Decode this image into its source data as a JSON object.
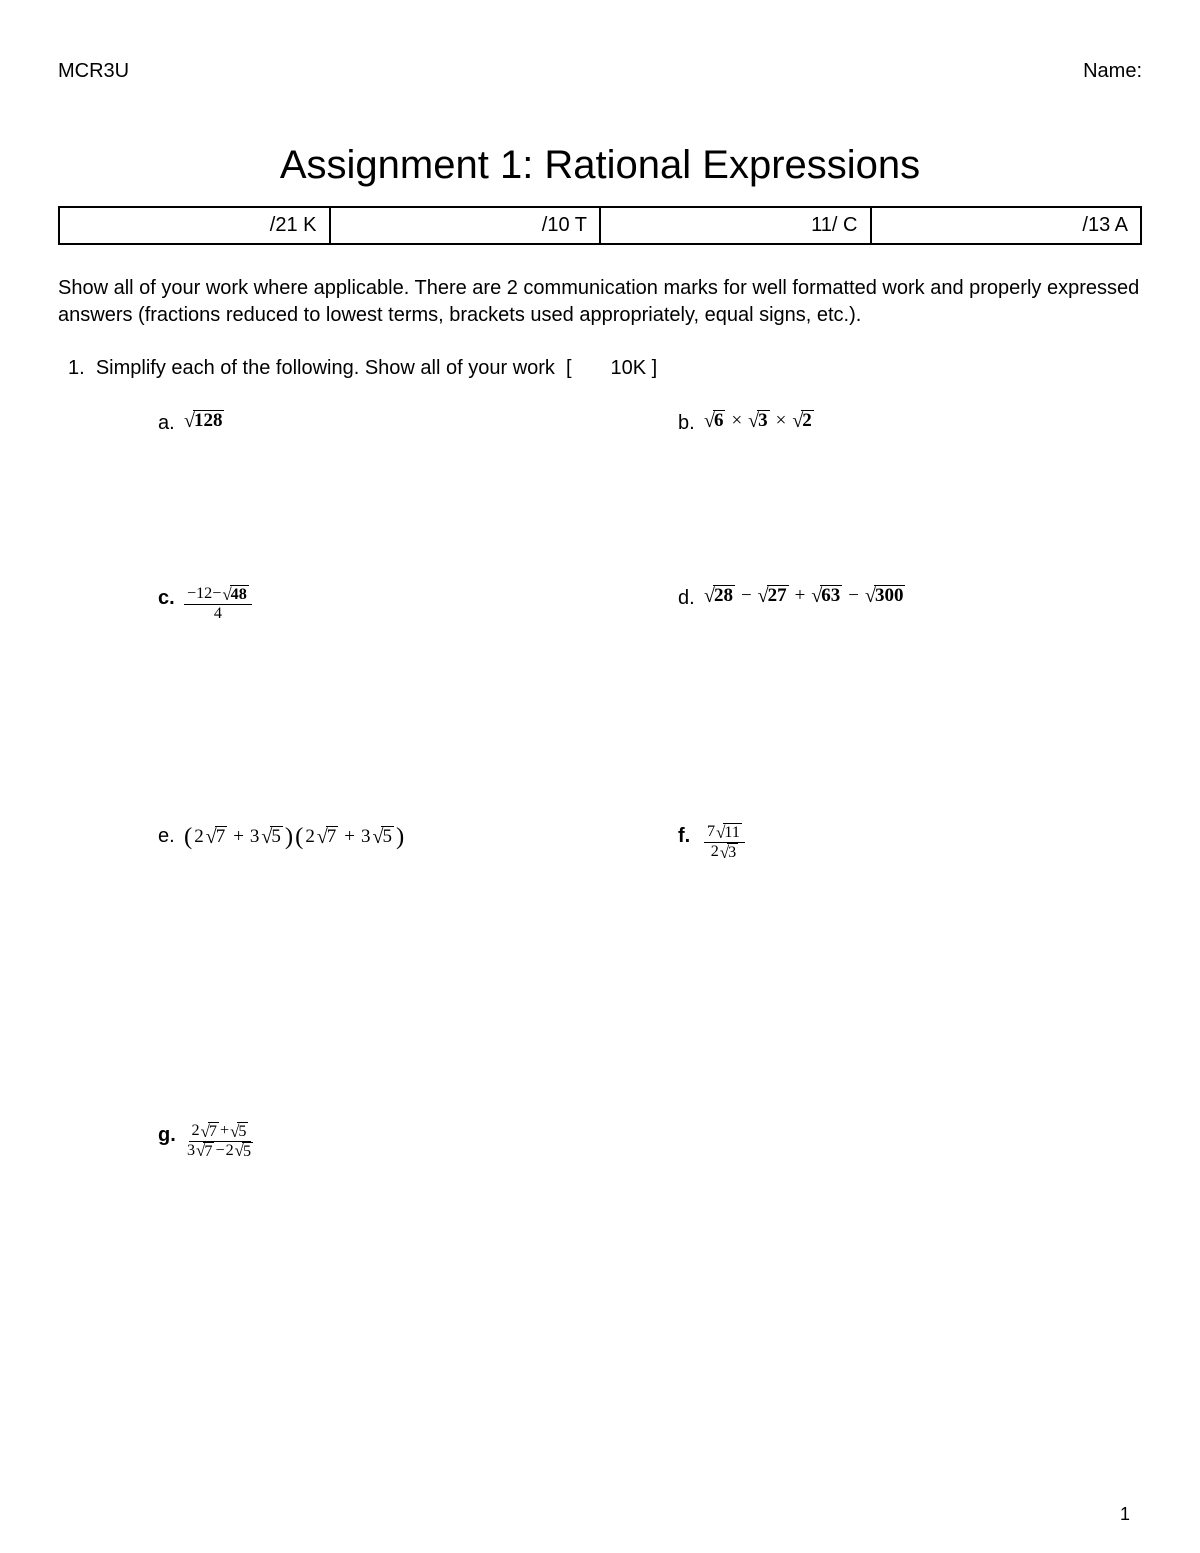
{
  "header": {
    "course": "MCR3U",
    "name_label": "Name:"
  },
  "title": "Assignment 1: Rational Expressions",
  "scores": [
    "/21 K",
    "/10 T",
    "11/ C",
    "/13 A"
  ],
  "instructions": "Show all of your work where applicable. There are 2 communication marks for well formatted work and properly expressed answers (fractions reduced to lowest terms, brackets used appropriately, equal signs, etc.).",
  "question1": {
    "number": "1.",
    "text": "Simplify each of the following. Show all of your work",
    "marks": "[       10K ]",
    "parts": {
      "a": {
        "label": "a.",
        "radicand": "128"
      },
      "b": {
        "label": "b.",
        "r1": "6",
        "r2": "3",
        "r3": "2",
        "times": "×"
      },
      "c": {
        "label": "c.",
        "num_lead": "−12−",
        "num_rad": "48",
        "den": "4"
      },
      "d": {
        "label": "d.",
        "r1": "28",
        "r2": "27",
        "r3": "63",
        "r4": "300",
        "minus": "−",
        "plus": "+"
      },
      "e": {
        "label": "e.",
        "lp": "(",
        "rp": ")",
        "c1": "2",
        "r1": "7",
        "plus": "+",
        "c2": "3",
        "r2": "5"
      },
      "f": {
        "label": "f.",
        "nc": "7",
        "nr": "11",
        "dc": "2",
        "dr": "3"
      },
      "g": {
        "label": "g.",
        "nc1": "2",
        "nr1": "7",
        "plus": "+",
        "nr2": "5",
        "dc1": "3",
        "dr1": "7",
        "minus": "−",
        "dc2": "2",
        "dr2": "5"
      }
    }
  },
  "page_number": "1"
}
